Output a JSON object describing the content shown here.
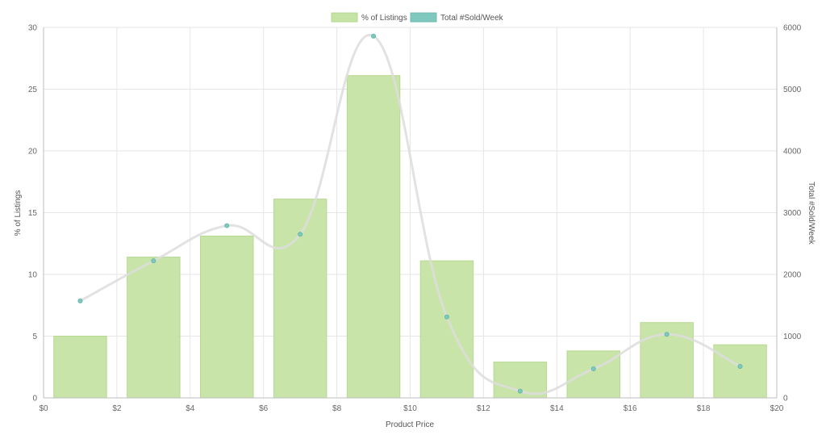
{
  "chart_data": {
    "type": "bar",
    "x_axis": {
      "label": "Product Price",
      "range": [
        0,
        20
      ],
      "tick_values": [
        0,
        2,
        4,
        6,
        8,
        10,
        12,
        14,
        16,
        18,
        20
      ],
      "tick_labels": [
        "$0",
        "$2",
        "$4",
        "$6",
        "$8",
        "$10",
        "$12",
        "$14",
        "$16",
        "$18",
        "$20"
      ]
    },
    "y_axis_left": {
      "label": "% of Listings",
      "range": [
        0,
        30
      ],
      "tick_values": [
        0,
        5,
        10,
        15,
        20,
        25,
        30
      ],
      "tick_labels": [
        "0",
        "5",
        "10",
        "15",
        "20",
        "25",
        "30"
      ]
    },
    "y_axis_right": {
      "label": "Total #Sold/Week",
      "range": [
        0,
        6000
      ],
      "tick_values": [
        0,
        1000,
        2000,
        3000,
        4000,
        5000,
        6000
      ],
      "tick_labels": [
        "0",
        "1000",
        "2000",
        "3000",
        "4000",
        "5000",
        "6000"
      ]
    },
    "grid": true,
    "legend": {
      "placement": "top-center"
    },
    "series": [
      {
        "name": "% of Listings",
        "type": "bar",
        "axis": "left",
        "color": "#c5e3a4",
        "x": [
          1,
          3,
          5,
          7,
          9,
          11,
          13,
          15,
          17,
          19
        ],
        "values": [
          5.0,
          11.4,
          13.1,
          16.1,
          26.1,
          11.1,
          2.9,
          3.8,
          6.1,
          4.3
        ]
      },
      {
        "name": "Total #Sold/Week",
        "type": "line",
        "axis": "right",
        "color": "#7fc8bd",
        "line_color": "#dddddd",
        "x": [
          1,
          3,
          5,
          7,
          9,
          11,
          13,
          15,
          17,
          19
        ],
        "values": [
          1570,
          2220,
          2790,
          2650,
          5860,
          1310,
          110,
          470,
          1030,
          510
        ]
      }
    ]
  }
}
